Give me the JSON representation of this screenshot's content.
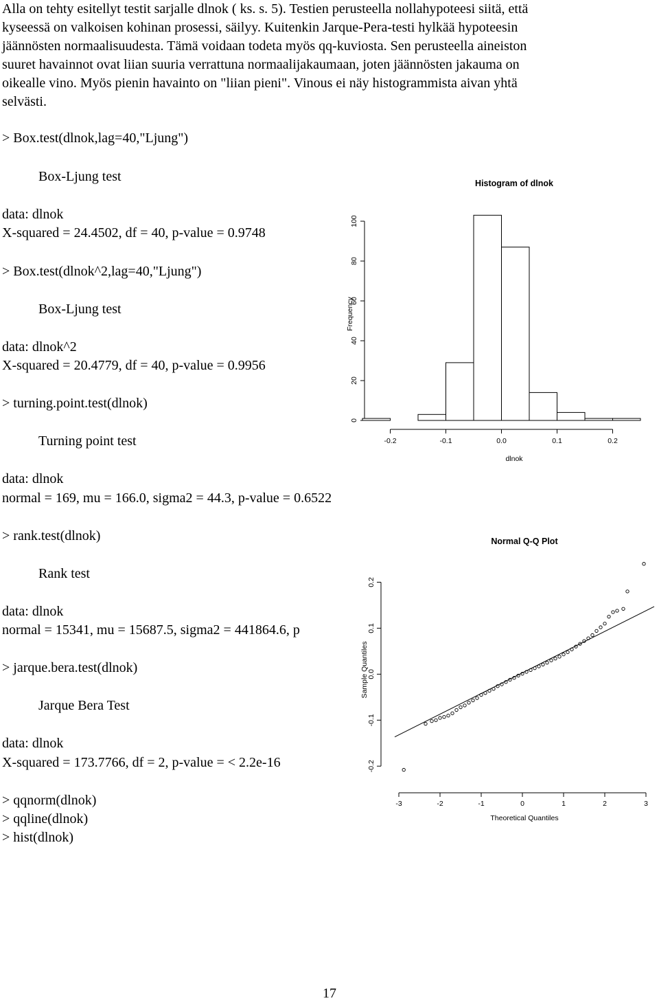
{
  "paragraph_lines": [
    "Alla on tehty esitellyt testit sarjalle dlnok ( ks. s. 5). Testien perusteella nollahypoteesi siitä, että",
    "kyseessä on valkoisen kohinan prosessi, säilyy. Kuitenkin Jarque-Pera-testi hylkää hypoteesin",
    "jäännösten normaalisuudesta. Tämä voidaan todeta myös qq-kuviosta. Sen perusteella aineiston",
    "suuret havainnot ovat liian suuria verrattuna normaalijakaumaan, joten jäännösten jakauma on",
    "oikealle vino. Myös pienin havainto on \"liian pieni\". Vinous ei näy histogrammista aivan yhtä",
    "selvästi."
  ],
  "console": {
    "box1_cmd": "> Box.test(dlnok,lag=40,\"Ljung\")",
    "box1_title": "Box-Ljung test",
    "box1_data": "data:  dlnok",
    "box1_result": "X-squared = 24.4502, df = 40, p-value = 0.9748",
    "box2_cmd": "> Box.test(dlnok^2,lag=40,\"Ljung\")",
    "box2_title": "Box-Ljung test",
    "box2_data": "data:  dlnok^2",
    "box2_result": "X-squared = 20.4779, df = 40, p-value = 0.9956",
    "tp_cmd": "> turning.point.test(dlnok)",
    "tp_title": "Turning point test",
    "tp_data": "data:  dlnok",
    "tp_result": "normal = 169, mu = 166.0, sigma2 =  44.3, p-value = 0.6522",
    "rank_cmd": "> rank.test(dlnok)",
    "rank_title": "Rank test",
    "rank_data": "data:  dlnok",
    "rank_result": "normal = 15341, mu =  15687.5, sigma2 = 441864.6, p",
    "jb_cmd": "> jarque.bera.test(dlnok)",
    "jb_title": "Jarque Bera Test",
    "jb_data": "data:  dlnok",
    "jb_result": "X-squared = 173.7766, df = 2, p-value = < 2.2e-16",
    "cmd_qqnorm": "> qqnorm(dlnok)",
    "cmd_qqline": "> qqline(dlnok)",
    "cmd_hist": "> hist(dlnok)"
  },
  "chart_data": [
    {
      "type": "bar",
      "title": "Histogram of dlnok",
      "xlabel": "dlnok",
      "ylabel": "Frequency",
      "x_ticks": [
        "-0.2",
        "-0.1",
        "0.0",
        "0.1",
        "0.2"
      ],
      "y_ticks": [
        "0",
        "20",
        "40",
        "60",
        "80",
        "100"
      ],
      "xlim": [
        -0.25,
        0.25
      ],
      "ylim": [
        0,
        100
      ],
      "bin_edges": [
        -0.25,
        -0.2,
        -0.15,
        -0.1,
        -0.05,
        0.0,
        0.05,
        0.1,
        0.15,
        0.2,
        0.25
      ],
      "values": [
        1,
        0,
        3,
        29,
        103,
        87,
        14,
        4,
        1,
        1
      ]
    },
    {
      "type": "scatter",
      "title": "Normal Q-Q Plot",
      "xlabel": "Theoretical Quantiles",
      "ylabel": "Sample Quantiles",
      "x_ticks": [
        "-3",
        "-2",
        "-1",
        "0",
        "1",
        "2",
        "3"
      ],
      "y_ticks": [
        "-0.2",
        "-0.1",
        "0.0",
        "0.1",
        "0.2"
      ],
      "xlim": [
        -3.2,
        3.2
      ],
      "ylim": [
        -0.24,
        0.25
      ],
      "reference_line": {
        "intercept": 0.003,
        "slope": 0.045
      },
      "points": [
        [
          -2.88,
          -0.208
        ],
        [
          -2.35,
          -0.108
        ],
        [
          -2.2,
          -0.102
        ],
        [
          -2.1,
          -0.1
        ],
        [
          -2.0,
          -0.095
        ],
        [
          -1.9,
          -0.093
        ],
        [
          -1.8,
          -0.09
        ],
        [
          -1.7,
          -0.085
        ],
        [
          -1.6,
          -0.078
        ],
        [
          -1.5,
          -0.072
        ],
        [
          -1.4,
          -0.068
        ],
        [
          -1.3,
          -0.062
        ],
        [
          -1.2,
          -0.057
        ],
        [
          -1.1,
          -0.052
        ],
        [
          -1.0,
          -0.045
        ],
        [
          -0.9,
          -0.041
        ],
        [
          -0.8,
          -0.036
        ],
        [
          -0.7,
          -0.032
        ],
        [
          -0.6,
          -0.026
        ],
        [
          -0.5,
          -0.022
        ],
        [
          -0.4,
          -0.017
        ],
        [
          -0.3,
          -0.012
        ],
        [
          -0.2,
          -0.008
        ],
        [
          -0.1,
          -0.003
        ],
        [
          0.0,
          0.001
        ],
        [
          0.1,
          0.005
        ],
        [
          0.2,
          0.009
        ],
        [
          0.3,
          0.013
        ],
        [
          0.4,
          0.017
        ],
        [
          0.5,
          0.021
        ],
        [
          0.6,
          0.025
        ],
        [
          0.7,
          0.03
        ],
        [
          0.8,
          0.034
        ],
        [
          0.9,
          0.038
        ],
        [
          1.0,
          0.043
        ],
        [
          1.1,
          0.048
        ],
        [
          1.2,
          0.054
        ],
        [
          1.3,
          0.06
        ],
        [
          1.4,
          0.066
        ],
        [
          1.5,
          0.072
        ],
        [
          1.6,
          0.078
        ],
        [
          1.7,
          0.085
        ],
        [
          1.8,
          0.094
        ],
        [
          1.9,
          0.102
        ],
        [
          2.0,
          0.11
        ],
        [
          2.1,
          0.125
        ],
        [
          2.2,
          0.135
        ],
        [
          2.3,
          0.138
        ],
        [
          2.45,
          0.142
        ],
        [
          2.55,
          0.18
        ],
        [
          2.95,
          0.24
        ]
      ]
    }
  ],
  "page_number": "17"
}
